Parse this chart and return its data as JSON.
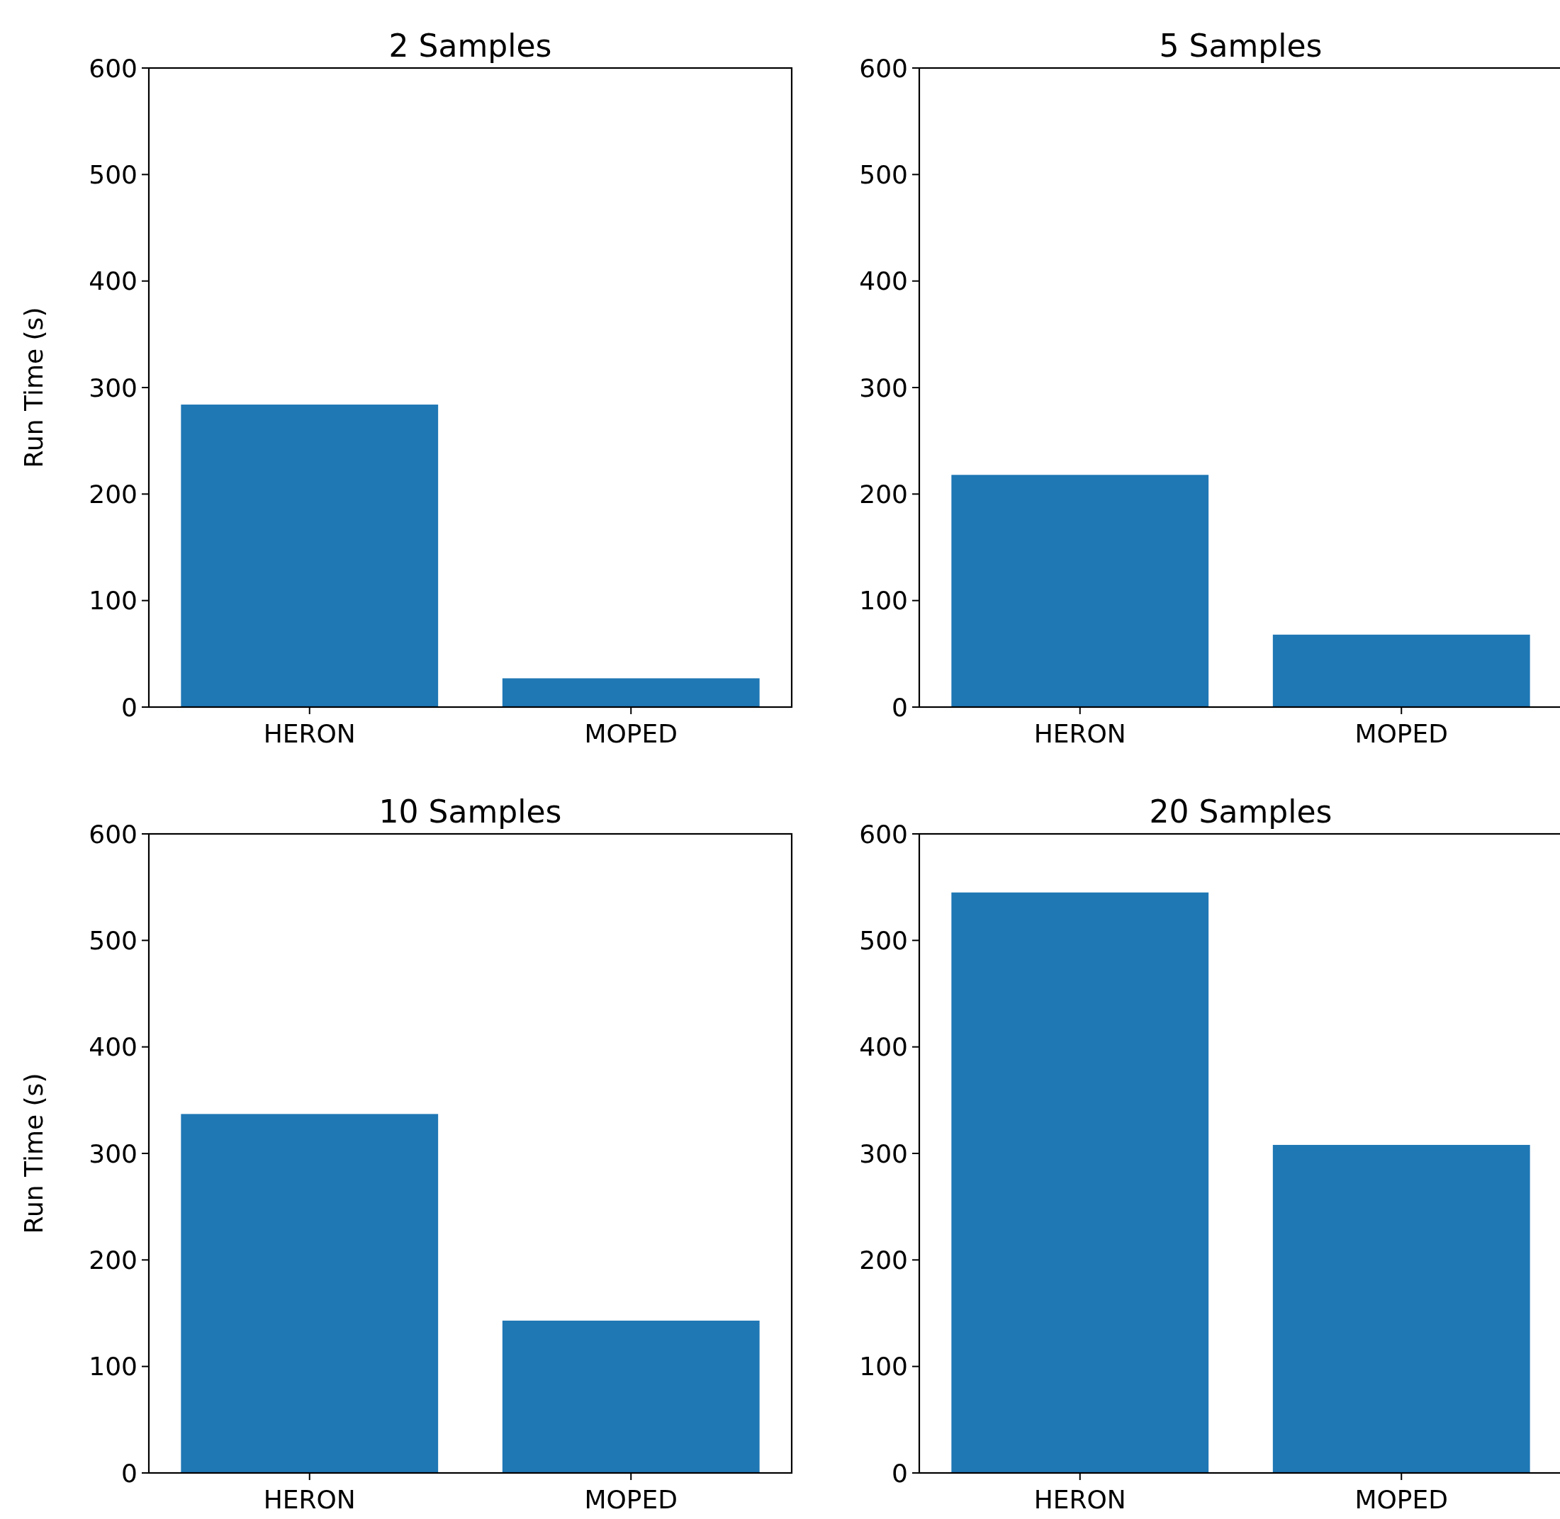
{
  "chart_data": [
    {
      "type": "bar",
      "title": "2 Samples",
      "ylabel": "Run Time (s)",
      "categories": [
        "HERON",
        "MOPED"
      ],
      "values": [
        284,
        27
      ],
      "color": "#1f77b4",
      "ylim": [
        0,
        600
      ],
      "yticks": [
        0,
        100,
        200,
        300,
        400,
        500,
        600
      ]
    },
    {
      "type": "bar",
      "title": "5 Samples",
      "categories": [
        "HERON",
        "MOPED"
      ],
      "values": [
        218,
        68
      ],
      "color": "#1f77b4",
      "ylim": [
        0,
        600
      ],
      "yticks": [
        0,
        100,
        200,
        300,
        400,
        500,
        600
      ]
    },
    {
      "type": "bar",
      "title": "10 Samples",
      "ylabel": "Run Time (s)",
      "categories": [
        "HERON",
        "MOPED"
      ],
      "values": [
        337,
        143
      ],
      "color": "#1f77b4",
      "ylim": [
        0,
        600
      ],
      "yticks": [
        0,
        100,
        200,
        300,
        400,
        500,
        600
      ]
    },
    {
      "type": "bar",
      "title": "20 Samples",
      "categories": [
        "HERON",
        "MOPED"
      ],
      "values": [
        545,
        308
      ],
      "color": "#1f77b4",
      "ylim": [
        0,
        600
      ],
      "yticks": [
        0,
        100,
        200,
        300,
        400,
        500,
        600
      ]
    }
  ]
}
